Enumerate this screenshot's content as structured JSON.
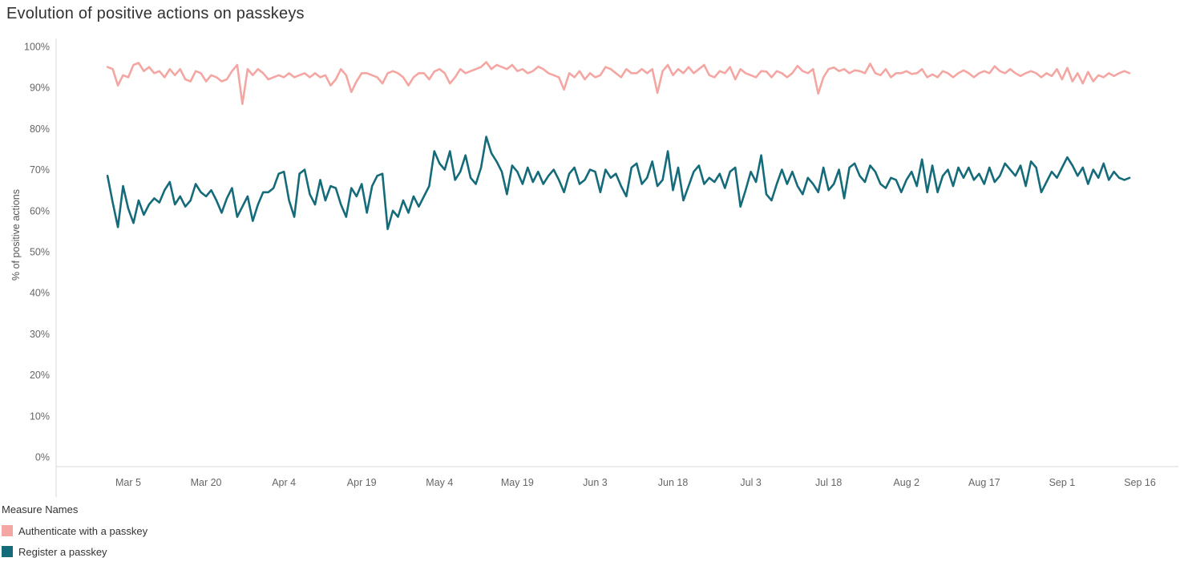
{
  "chart_data": {
    "type": "line",
    "title": "Evolution of positive actions on passkeys",
    "xlabel": "",
    "ylabel": "% of positive actions",
    "ylim": [
      0,
      100
    ],
    "grid": false,
    "legend_position": "bottom-left",
    "legend_title": "Measure Names",
    "y_ticks": {
      "values": [
        0,
        10,
        20,
        30,
        40,
        50,
        60,
        70,
        80,
        90,
        100
      ],
      "labels": [
        "0%",
        "10%",
        "20%",
        "30%",
        "40%",
        "50%",
        "60%",
        "70%",
        "80%",
        "90%",
        "100%"
      ]
    },
    "x_ticks": {
      "labels": [
        "Mar 5",
        "Mar 20",
        "Apr 4",
        "Apr 19",
        "May 4",
        "May 19",
        "Jun 3",
        "Jun 18",
        "Jul 3",
        "Jul 18",
        "Aug 2",
        "Aug 17",
        "Sep 1",
        "Sep 16"
      ],
      "day_offsets": [
        4,
        19,
        34,
        49,
        64,
        79,
        94,
        109,
        124,
        139,
        154,
        169,
        184,
        199
      ]
    },
    "x_unit": "day (offset 0 = first plotted point, approx Mar 1)",
    "series": [
      {
        "name": "Authenticate with a passkey",
        "color": "#F4A6A2",
        "values": [
          95,
          94.5,
          90.5,
          93,
          92.5,
          95.5,
          96,
          94,
          95,
          93.5,
          94,
          92.5,
          94.5,
          93,
          94.5,
          92,
          91.5,
          94,
          93.5,
          91.5,
          93,
          92.5,
          91.5,
          92,
          94,
          95.5,
          86,
          94.5,
          93,
          94.5,
          93.5,
          92,
          92.5,
          93,
          92.5,
          93.5,
          92.5,
          93,
          93.5,
          92.5,
          93.5,
          92.5,
          93,
          90.5,
          92,
          94.5,
          93,
          88.9,
          91.5,
          93.5,
          93.5,
          93,
          92.5,
          91,
          93.5,
          94,
          93.5,
          92.5,
          90.5,
          92.5,
          93.5,
          93.5,
          92,
          93.9,
          94.5,
          93.5,
          91,
          92.5,
          94.5,
          93.5,
          94,
          94.5,
          95,
          96.2,
          94.5,
          95.5,
          95,
          94.5,
          95.5,
          94,
          94.5,
          93.5,
          94,
          95.1,
          94.5,
          93.5,
          93,
          92.5,
          89.5,
          93.5,
          92.5,
          94,
          92,
          93.5,
          92.5,
          93,
          95,
          94.5,
          93.5,
          92.5,
          94.5,
          93.5,
          93.5,
          94.5,
          93.5,
          94.5,
          88.7,
          94,
          95.5,
          93,
          94.5,
          93.5,
          95,
          93.5,
          94.5,
          95.5,
          93,
          92.5,
          94,
          93.5,
          95,
          92,
          94.5,
          93.5,
          93,
          92.5,
          94,
          93.9,
          92.5,
          94,
          93.5,
          92.5,
          93.5,
          95.3,
          94,
          93.5,
          94.5,
          88.5,
          92.5,
          94.5,
          94.9,
          94,
          94.5,
          93.5,
          94.2,
          94,
          93.5,
          95.8,
          93.5,
          93,
          94.5,
          92.5,
          93.5,
          93.5,
          94,
          93.3,
          93.5,
          94.5,
          92.5,
          93.2,
          92.5,
          94,
          93.5,
          92.5,
          93.5,
          94.2,
          93.5,
          92.5,
          93.5,
          94,
          93.5,
          95.2,
          94,
          93.5,
          94.5,
          93.5,
          92.8,
          93.5,
          94,
          93.5,
          92.5,
          93.5,
          92.8,
          94.5,
          92,
          94.8,
          91.5,
          93.5,
          91,
          93.8,
          91.5,
          93,
          92.5,
          93.5,
          92.8,
          93.5,
          94,
          93.5
        ]
      },
      {
        "name": "Register a passkey",
        "color": "#156B7A",
        "values": [
          68.5,
          62,
          56,
          66,
          60.5,
          57,
          62.5,
          59,
          61.5,
          63,
          62,
          65,
          67,
          61.5,
          63.5,
          61,
          62.5,
          66.5,
          64.5,
          63.5,
          65,
          62.5,
          59.5,
          63,
          65.5,
          58.5,
          61,
          63.5,
          57.5,
          61.5,
          64.5,
          64.5,
          65.5,
          69,
          69.5,
          62.5,
          58.5,
          69,
          70,
          64,
          61.5,
          67.5,
          62.5,
          66,
          65.5,
          61.5,
          58.5,
          65.5,
          63.5,
          66.5,
          59.5,
          66,
          68.5,
          69,
          55.5,
          60,
          58.5,
          62.5,
          59.5,
          63.5,
          61,
          63.5,
          66,
          74.5,
          71.5,
          70,
          74.5,
          67.5,
          69.5,
          73.5,
          68,
          66.5,
          70.5,
          78,
          74,
          72,
          69.5,
          64,
          71,
          69.5,
          66.5,
          70.5,
          67,
          69.5,
          66.5,
          68.5,
          70,
          67.5,
          64.5,
          69,
          70.5,
          66.5,
          67.5,
          70,
          69.5,
          64.5,
          70,
          68,
          69,
          66,
          63.5,
          70.5,
          71.5,
          66.5,
          68,
          72,
          66,
          67.5,
          74.5,
          65,
          70.5,
          62.5,
          66,
          69.5,
          71,
          66.5,
          68,
          67,
          69,
          65.5,
          69.5,
          70.5,
          61,
          65,
          69.5,
          67,
          73.5,
          64,
          62.5,
          66.5,
          70,
          66.5,
          69.5,
          66,
          64,
          68,
          66.5,
          64.5,
          70.5,
          65,
          66.5,
          70,
          63,
          70.5,
          71.5,
          68.5,
          67,
          71,
          69.5,
          66.5,
          65.5,
          68,
          67.5,
          64.5,
          67.5,
          69.5,
          66,
          72.5,
          64.5,
          71,
          64.5,
          68.5,
          70,
          66,
          70.5,
          68,
          70.5,
          67.5,
          69,
          66.5,
          70.5,
          67,
          68.5,
          71.5,
          70,
          68.5,
          71,
          66,
          72,
          70.5,
          64.5,
          67,
          69.5,
          68,
          70.5,
          73,
          71,
          68.5,
          70.5,
          66.5,
          70,
          68,
          71.5,
          67.5,
          69.5,
          68,
          67.5,
          68
        ]
      }
    ]
  },
  "legend": {
    "title": "Measure Names",
    "items": [
      {
        "label": "Authenticate with a passkey"
      },
      {
        "label": "Register a passkey"
      }
    ]
  },
  "colors": {
    "axis_line": "#d9d9d9",
    "tick_text": "#666666",
    "title_text": "#323232"
  }
}
